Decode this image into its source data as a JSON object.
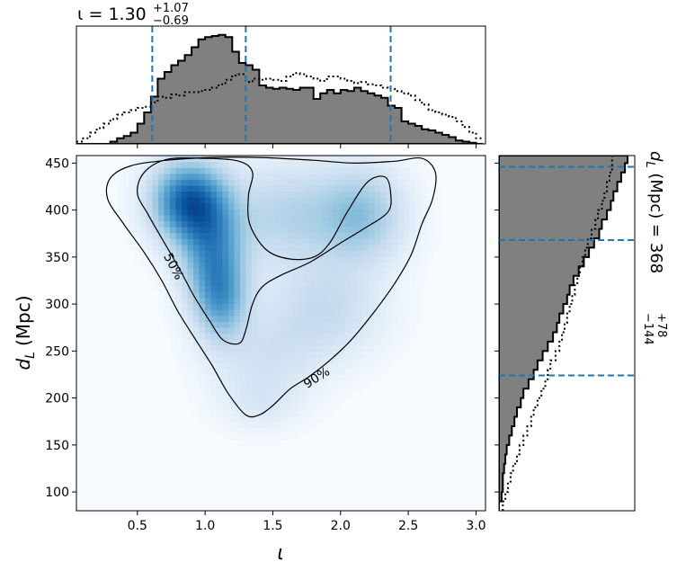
{
  "chart_data": {
    "type": "corner-2d-posterior",
    "x_param_label": "ι",
    "y_param_label": "d",
    "y_param_subscript": "L",
    "y_param_unit": "(Mpc)",
    "top_title": {
      "prefix": "ι = ",
      "median": "1.30",
      "plus": "+1.07",
      "minus": "−0.69"
    },
    "right_title": {
      "prefix": "d",
      "subscript": "L",
      "suffix": " (Mpc) = ",
      "median": "368",
      "plus": "+78",
      "minus": "−144"
    },
    "xlim": [
      0.05,
      3.07
    ],
    "ylim": [
      80,
      458
    ],
    "x_ticks": [
      "0.5",
      "1.0",
      "1.5",
      "2.0",
      "2.5",
      "3.0"
    ],
    "x_tick_values": [
      0.5,
      1.0,
      1.5,
      2.0,
      2.5,
      3.0
    ],
    "y_ticks": [
      "100",
      "150",
      "200",
      "250",
      "300",
      "350",
      "400",
      "450"
    ],
    "y_tick_values": [
      100,
      150,
      200,
      250,
      300,
      350,
      400,
      450
    ],
    "x_quantile_lines": [
      0.61,
      1.3,
      2.37
    ],
    "y_quantile_lines": [
      224,
      368,
      446
    ],
    "quantile_color": "#1f77b4",
    "hist_fill_color": "#808080",
    "colormap": "Blues",
    "contour_labels": [
      "50%",
      "90%"
    ],
    "density_blobs": [
      {
        "x": 0.87,
        "y": 410,
        "sx": 0.18,
        "sy": 28,
        "w": 1.0
      },
      {
        "x": 1.05,
        "y": 360,
        "sx": 0.16,
        "sy": 40,
        "w": 0.7
      },
      {
        "x": 1.12,
        "y": 305,
        "sx": 0.13,
        "sy": 30,
        "w": 0.55
      },
      {
        "x": 1.6,
        "y": 395,
        "sx": 0.3,
        "sy": 38,
        "w": 0.32
      },
      {
        "x": 2.15,
        "y": 395,
        "sx": 0.22,
        "sy": 35,
        "w": 0.45
      },
      {
        "x": 1.9,
        "y": 295,
        "sx": 0.28,
        "sy": 35,
        "w": 0.25
      },
      {
        "x": 1.45,
        "y": 245,
        "sx": 0.28,
        "sy": 35,
        "w": 0.18
      },
      {
        "x": 1.4,
        "y": 195,
        "sx": 0.2,
        "sy": 20,
        "w": 0.1
      }
    ],
    "contour_90": [
      [
        0.3,
        434
      ],
      [
        0.28,
        412
      ],
      [
        0.4,
        385
      ],
      [
        0.55,
        355
      ],
      [
        0.68,
        325
      ],
      [
        0.8,
        292
      ],
      [
        0.93,
        262
      ],
      [
        1.05,
        235
      ],
      [
        1.17,
        205
      ],
      [
        1.3,
        182
      ],
      [
        1.4,
        182
      ],
      [
        1.5,
        192
      ],
      [
        1.63,
        210
      ],
      [
        1.76,
        222
      ],
      [
        1.92,
        240
      ],
      [
        2.08,
        262
      ],
      [
        2.25,
        292
      ],
      [
        2.4,
        322
      ],
      [
        2.52,
        352
      ],
      [
        2.6,
        385
      ],
      [
        2.68,
        412
      ],
      [
        2.7,
        440
      ],
      [
        2.6,
        455
      ],
      [
        2.4,
        452
      ],
      [
        2.1,
        450
      ],
      [
        1.8,
        453
      ],
      [
        1.4,
        456
      ],
      [
        1.05,
        456
      ],
      [
        0.72,
        453
      ],
      [
        0.45,
        447
      ]
    ],
    "contour_50_left": [
      [
        0.5,
        418
      ],
      [
        0.58,
        395
      ],
      [
        0.7,
        365
      ],
      [
        0.82,
        335
      ],
      [
        0.92,
        308
      ],
      [
        1.03,
        283
      ],
      [
        1.13,
        262
      ],
      [
        1.25,
        258
      ],
      [
        1.3,
        272
      ],
      [
        1.35,
        300
      ],
      [
        1.42,
        318
      ],
      [
        1.55,
        330
      ],
      [
        1.78,
        345
      ],
      [
        2.0,
        365
      ],
      [
        2.17,
        380
      ],
      [
        2.35,
        398
      ],
      [
        2.37,
        418
      ],
      [
        2.33,
        435
      ],
      [
        2.2,
        430
      ],
      [
        2.05,
        398
      ],
      [
        1.92,
        365
      ],
      [
        1.8,
        350
      ],
      [
        1.62,
        348
      ],
      [
        1.45,
        358
      ],
      [
        1.33,
        385
      ],
      [
        1.32,
        415
      ],
      [
        1.35,
        440
      ],
      [
        1.25,
        452
      ],
      [
        1.0,
        455
      ],
      [
        0.72,
        454
      ],
      [
        0.55,
        440
      ]
    ],
    "contour_50_right": [
      [
        2.05,
        395
      ],
      [
        2.12,
        410
      ],
      [
        2.2,
        430
      ],
      [
        2.32,
        435
      ],
      [
        2.37,
        415
      ],
      [
        2.35,
        395
      ],
      [
        2.25,
        380
      ],
      [
        2.15,
        385
      ]
    ],
    "top_hist": {
      "bins": [
        0.05,
        0.1,
        0.15,
        0.2,
        0.25,
        0.3,
        0.35,
        0.4,
        0.45,
        0.5,
        0.55,
        0.6,
        0.65,
        0.7,
        0.75,
        0.8,
        0.85,
        0.9,
        0.95,
        1.0,
        1.05,
        1.1,
        1.15,
        1.2,
        1.25,
        1.3,
        1.35,
        1.4,
        1.45,
        1.5,
        1.55,
        1.6,
        1.65,
        1.7,
        1.75,
        1.8,
        1.85,
        1.9,
        1.95,
        2.0,
        2.05,
        2.1,
        2.15,
        2.2,
        2.25,
        2.3,
        2.35,
        2.4,
        2.45,
        2.5,
        2.55,
        2.6,
        2.65,
        2.7,
        2.75,
        2.8,
        2.85,
        2.9,
        2.95,
        3.0,
        3.05
      ],
      "filled": [
        0.0,
        0.0,
        0.0,
        0.0,
        0.0,
        0.02,
        0.05,
        0.07,
        0.1,
        0.18,
        0.28,
        0.42,
        0.58,
        0.64,
        0.7,
        0.74,
        0.79,
        0.86,
        0.93,
        0.95,
        0.96,
        0.97,
        0.95,
        0.82,
        0.72,
        0.7,
        0.66,
        0.52,
        0.5,
        0.49,
        0.5,
        0.49,
        0.48,
        0.5,
        0.5,
        0.4,
        0.45,
        0.48,
        0.45,
        0.48,
        0.47,
        0.5,
        0.47,
        0.45,
        0.43,
        0.41,
        0.34,
        0.32,
        0.2,
        0.18,
        0.16,
        0.13,
        0.12,
        0.1,
        0.08,
        0.06,
        0.03,
        0.02,
        0.01,
        0.0
      ],
      "dotted": [
        0.02,
        0.05,
        0.1,
        0.14,
        0.18,
        0.22,
        0.26,
        0.28,
        0.3,
        0.32,
        0.33,
        0.37,
        0.42,
        0.41,
        0.44,
        0.43,
        0.46,
        0.46,
        0.47,
        0.48,
        0.5,
        0.53,
        0.57,
        0.61,
        0.62,
        0.55,
        0.58,
        0.57,
        0.58,
        0.57,
        0.56,
        0.6,
        0.63,
        0.62,
        0.6,
        0.58,
        0.56,
        0.6,
        0.6,
        0.58,
        0.56,
        0.54,
        0.55,
        0.53,
        0.52,
        0.5,
        0.49,
        0.47,
        0.45,
        0.43,
        0.39,
        0.35,
        0.3,
        0.28,
        0.26,
        0.24,
        0.2,
        0.15,
        0.1,
        0.05
      ]
    },
    "right_hist": {
      "bins": [
        80,
        90,
        100,
        110,
        120,
        130,
        140,
        150,
        160,
        170,
        180,
        190,
        200,
        210,
        220,
        230,
        240,
        250,
        260,
        270,
        280,
        290,
        300,
        310,
        320,
        330,
        340,
        350,
        360,
        370,
        380,
        390,
        400,
        410,
        420,
        430,
        440,
        450,
        458
      ],
      "filled": [
        0.0,
        0.02,
        0.03,
        0.03,
        0.04,
        0.05,
        0.06,
        0.08,
        0.1,
        0.12,
        0.14,
        0.17,
        0.19,
        0.23,
        0.27,
        0.3,
        0.34,
        0.38,
        0.42,
        0.45,
        0.47,
        0.5,
        0.53,
        0.55,
        0.58,
        0.62,
        0.66,
        0.7,
        0.74,
        0.78,
        0.8,
        0.84,
        0.87,
        0.89,
        0.92,
        0.95,
        0.98,
        1.0
      ],
      "dotted": [
        0.03,
        0.05,
        0.07,
        0.09,
        0.11,
        0.14,
        0.16,
        0.19,
        0.22,
        0.25,
        0.27,
        0.3,
        0.33,
        0.36,
        0.38,
        0.4,
        0.44,
        0.47,
        0.49,
        0.51,
        0.53,
        0.55,
        0.57,
        0.59,
        0.61,
        0.63,
        0.65,
        0.67,
        0.69,
        0.72,
        0.75,
        0.77,
        0.8,
        0.82,
        0.84,
        0.86,
        0.88,
        0.88
      ]
    }
  }
}
